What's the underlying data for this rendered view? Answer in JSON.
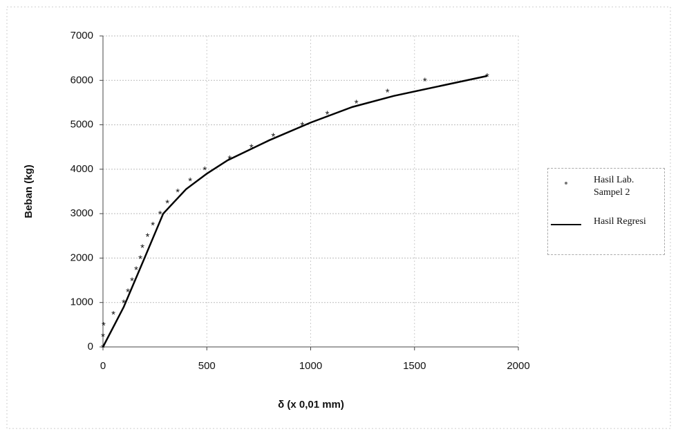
{
  "chart_data": {
    "type": "scatter",
    "x_label": "δ (x 0,01 mm)",
    "y_label": "Beban (kg)",
    "xlim": [
      0,
      2000
    ],
    "xticks": [
      0,
      500,
      1000,
      1500,
      2000
    ],
    "ylim": [
      0,
      7000
    ],
    "yticks": [
      0,
      1000,
      2000,
      3000,
      4000,
      5000,
      6000,
      7000
    ],
    "grid": true,
    "legend": "right",
    "series": [
      {
        "name": "Hasil Lab. Sampel 2",
        "mode": "markers",
        "color": "#777777",
        "x": [
          0,
          0,
          3,
          50,
          100,
          120,
          140,
          160,
          180,
          190,
          215,
          240,
          275,
          310,
          360,
          420,
          490,
          610,
          715,
          820,
          960,
          1080,
          1220,
          1370,
          1550,
          1850
        ],
        "values": [
          0,
          250,
          500,
          750,
          1000,
          1250,
          1500,
          1750,
          2000,
          2250,
          2500,
          2750,
          3000,
          3250,
          3500,
          3750,
          4000,
          4250,
          4500,
          4750,
          5000,
          5250,
          5500,
          5750,
          6000,
          6100
        ]
      },
      {
        "name": "Hasil Regresi",
        "mode": "line",
        "color": "#000000",
        "x": [
          0,
          100,
          200,
          290,
          400,
          500,
          600,
          800,
          1000,
          1200,
          1400,
          1600,
          1850
        ],
        "values": [
          0,
          900,
          2000,
          3000,
          3550,
          3900,
          4200,
          4650,
          5050,
          5400,
          5650,
          5850,
          6100
        ]
      }
    ]
  }
}
